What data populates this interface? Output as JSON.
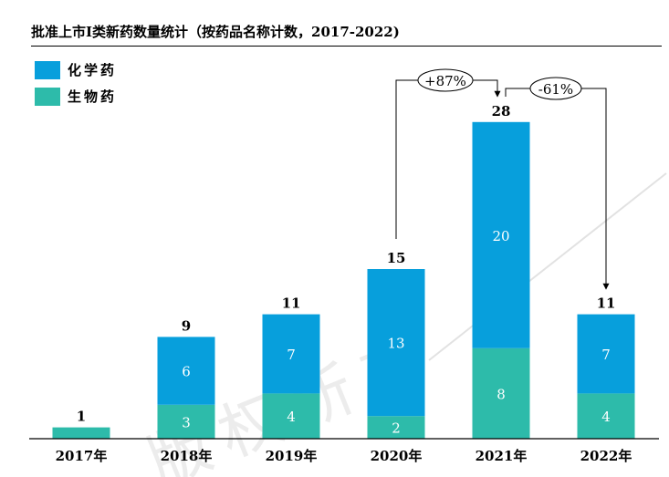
{
  "colors": {
    "chemical": "#079FDC",
    "biological": "#2DBBAA"
  },
  "legend": [
    {
      "label": "化学药",
      "color": "#079FDC"
    },
    {
      "label": "生物药",
      "color": "#2DBBAA"
    }
  ],
  "chart_data": {
    "type": "bar",
    "stacked": true,
    "title": "批准上市I类新药数量统计（按药品名称计数，2017-2022)",
    "categories": [
      "2017年",
      "2018年",
      "2019年",
      "2020年",
      "2021年",
      "2022年"
    ],
    "series": [
      {
        "name": "生物药",
        "values": [
          1,
          3,
          4,
          2,
          8,
          4
        ]
      },
      {
        "name": "化学药",
        "values": [
          0,
          6,
          7,
          13,
          20,
          7
        ]
      }
    ],
    "totals": [
      1,
      9,
      11,
      15,
      28,
      11
    ],
    "ylim": [
      0,
      28
    ],
    "annotations": [
      {
        "text": "+87%",
        "from": "2020年",
        "to": "2021年"
      },
      {
        "text": "-61%",
        "from": "2021年",
        "to": "2022年"
      }
    ],
    "watermark": "版权所有"
  }
}
